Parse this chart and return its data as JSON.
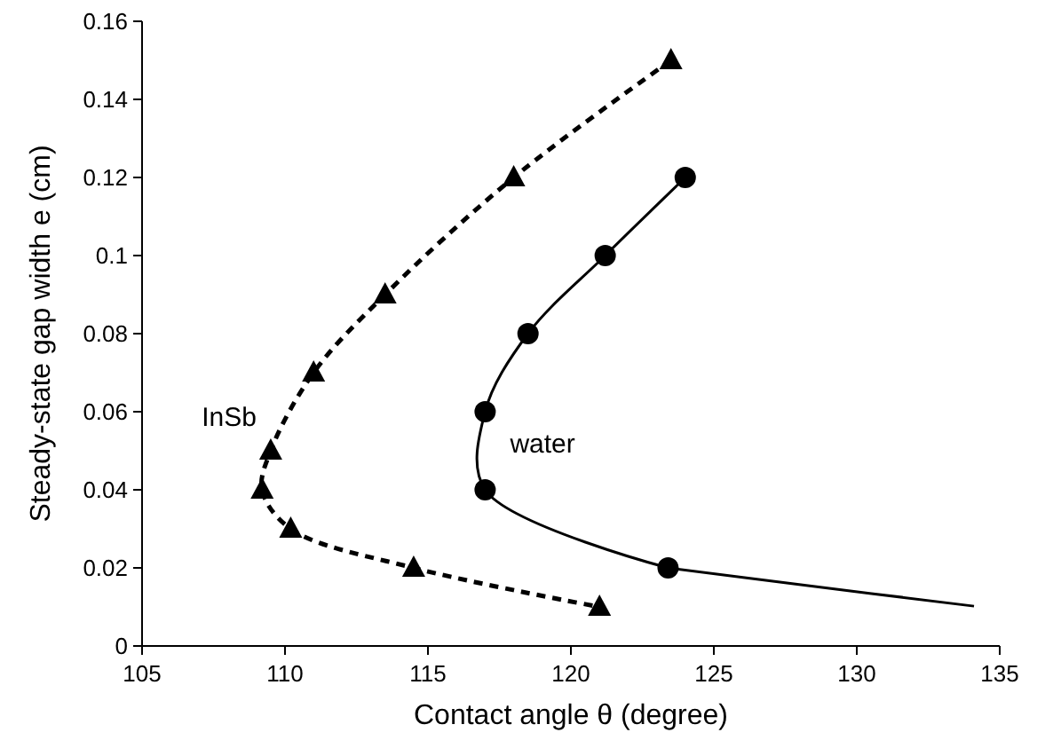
{
  "chart_data": {
    "type": "line",
    "xlabel": "Contact angle θ (degree)",
    "ylabel": "Steady-state gap width e (cm)",
    "xlim": [
      105,
      135
    ],
    "xticks": [
      105,
      110,
      115,
      120,
      125,
      130,
      135
    ],
    "ylim": [
      0,
      0.16
    ],
    "yticks": [
      0,
      0.02,
      0.04,
      0.06,
      0.08,
      0.1,
      0.12,
      0.14,
      0.16
    ],
    "series": [
      {
        "name": "InSb",
        "color": "#000000",
        "marker": "triangle",
        "line_style": "dashed",
        "x": [
          123.5,
          118.0,
          113.5,
          111.0,
          109.5,
          109.2,
          110.2,
          114.5,
          121.0
        ],
        "values": [
          0.15,
          0.12,
          0.09,
          0.07,
          0.05,
          0.04,
          0.03,
          0.02,
          0.01
        ]
      },
      {
        "name": "water",
        "color": "#000000",
        "marker": "circle",
        "line_style": "solid",
        "x": [
          124.0,
          121.2,
          118.5,
          117.0,
          117.0,
          123.4
        ],
        "values": [
          0.12,
          0.1,
          0.08,
          0.06,
          0.04,
          0.02
        ]
      },
      {
        "color": "#000000",
        "marker": "none",
        "line_style": "solid",
        "x": [
          123.4,
          127.8,
          134.1
        ],
        "values": [
          0.02,
          0.0159,
          0.0102
        ]
      }
    ]
  }
}
